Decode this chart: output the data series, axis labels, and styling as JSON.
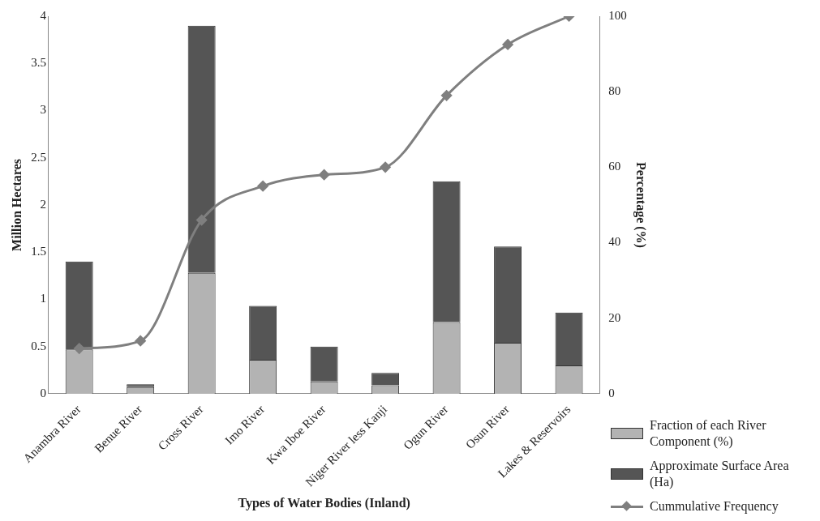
{
  "chart_data": {
    "type": "bar",
    "stacked": true,
    "xlabel": "Types of Water Bodies (Inland)",
    "ylabel": "Million Hectares",
    "y2label": "Percentage (%)",
    "categories": [
      "Anambra River",
      "Benue River",
      "Cross River",
      "Imo River",
      "Kwa Iboe River",
      "Niger River less Kanji",
      "Ogun River",
      "Osun River",
      "Lakes & Reservoirs"
    ],
    "series": [
      {
        "name": "Fraction of each River Component (%)",
        "color": "#b3b3b3",
        "values": [
          0.47,
          0.07,
          1.28,
          0.36,
          0.13,
          0.09,
          0.76,
          0.54,
          0.3
        ]
      },
      {
        "name": "Approximate Surface Area (Ha)",
        "color": "#555555",
        "values": [
          0.93,
          0.03,
          2.62,
          0.57,
          0.37,
          0.13,
          1.49,
          1.02,
          0.56
        ]
      },
      {
        "name": "Cummulative Frequency",
        "type": "line",
        "axis": "y2",
        "color": "#7f7f7f",
        "marker": "diamond",
        "values": [
          12,
          14,
          46,
          55,
          58,
          60,
          79,
          92.5,
          100
        ]
      }
    ],
    "ylim": [
      0,
      4
    ],
    "yticks": [
      0,
      0.5,
      1,
      1.5,
      2,
      2.5,
      3,
      3.5,
      4
    ],
    "y2lim": [
      0,
      100
    ],
    "y2ticks": [
      0,
      20,
      40,
      60,
      80,
      100
    ],
    "grid": false,
    "legend": "bottom right"
  }
}
